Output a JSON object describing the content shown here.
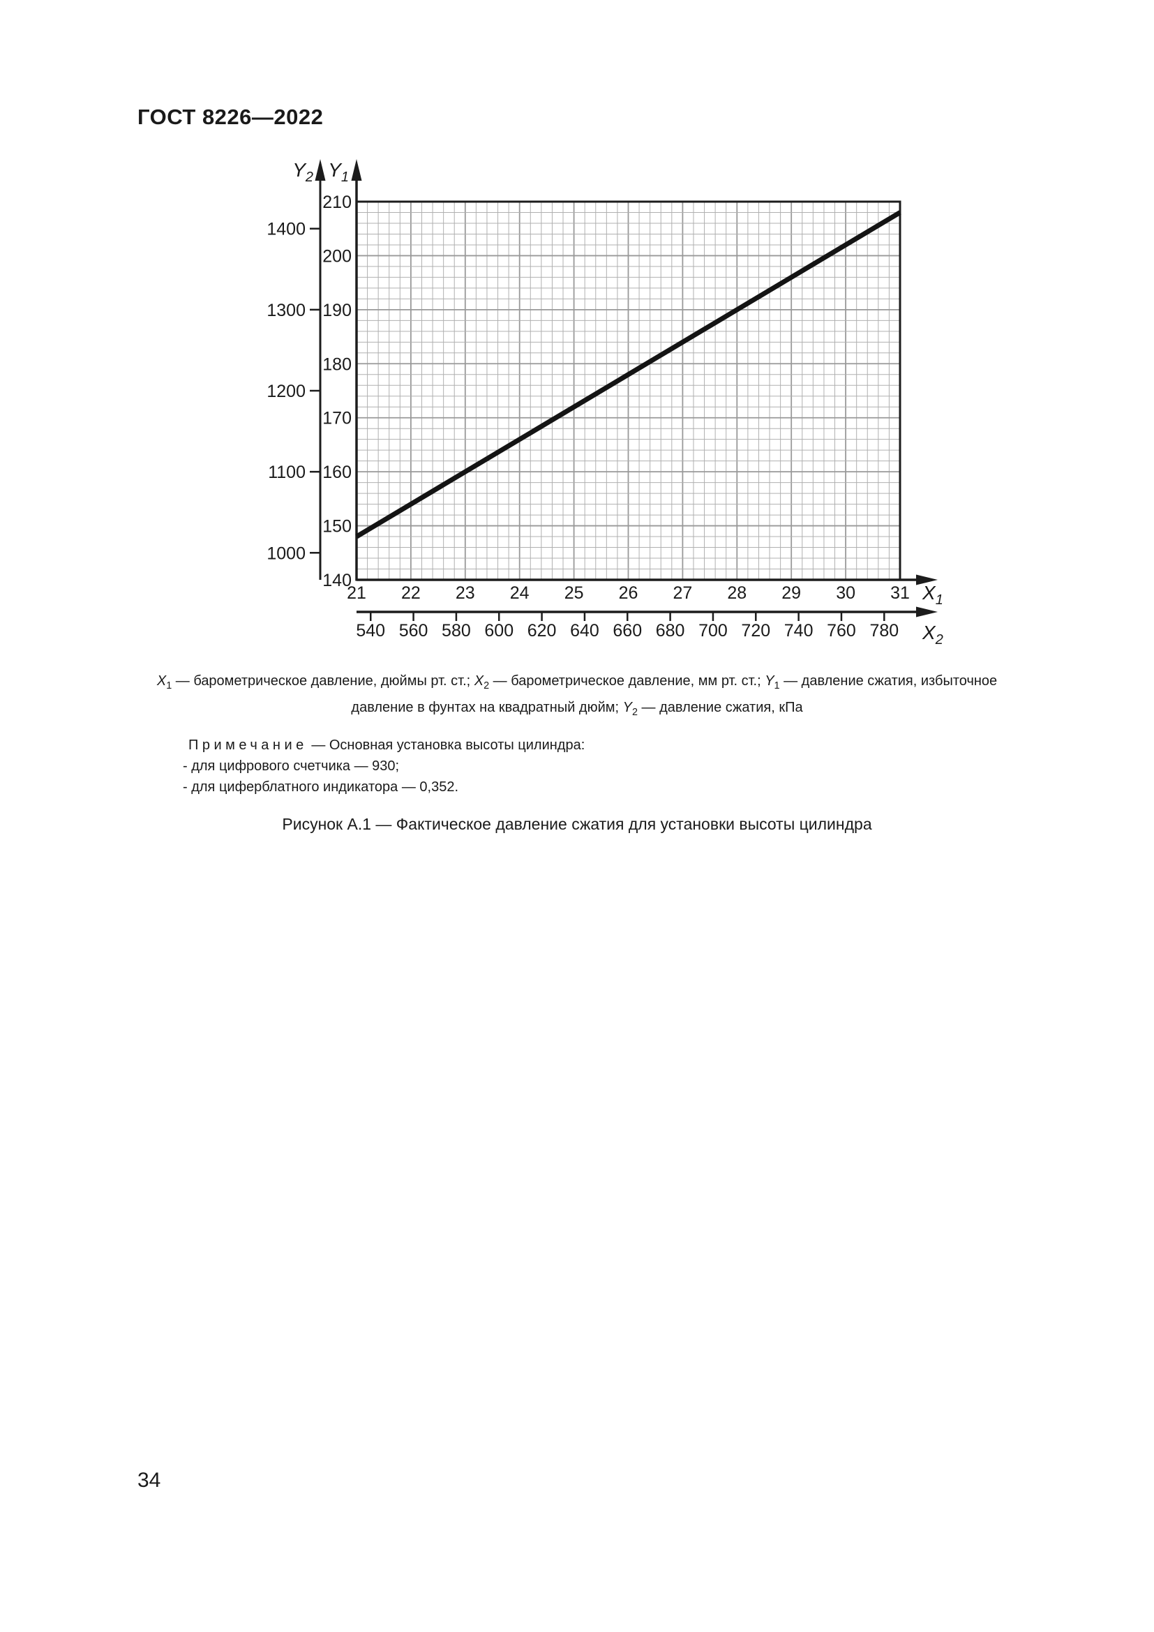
{
  "document": {
    "header": "ГОСТ 8226—2022",
    "page_number": "34",
    "legend_parts": [
      {
        "var": "X",
        "sub": "1",
        "text": " — барометрическое давление, дюймы рт. ст.; "
      },
      {
        "var": "X",
        "sub": "2",
        "text": " — барометрическое давление, мм рт. ст.; "
      },
      {
        "var": "Y",
        "sub": "1",
        "text": " — давление сжатия, избыточное давление в фунтах на квадратный дюйм; "
      },
      {
        "var": "Y",
        "sub": "2",
        "text": " — давление сжатия, кПа"
      }
    ],
    "note": {
      "label": "Примечание",
      "intro": " — Основная установка высоты цилиндра:",
      "items": [
        "- для цифрового счетчика — 930;",
        "- для циферблатного индикатора — 0,352."
      ]
    },
    "figure_caption": "Рисунок А.1 — Фактическое давление сжатия для установки высоты цилиндра"
  },
  "chart_data": {
    "type": "line",
    "title": "",
    "grid": true,
    "axes": {
      "x1": {
        "label": {
          "var": "X",
          "sub": "1"
        },
        "min": 21,
        "max": 31,
        "ticks": [
          21,
          22,
          23,
          24,
          25,
          26,
          27,
          28,
          29,
          30,
          31
        ],
        "minor_step": 0.2,
        "description": "барометрическое давление, дюймы рт. ст."
      },
      "x2": {
        "label": {
          "var": "X",
          "sub": "2"
        },
        "ticks": [
          540,
          560,
          580,
          600,
          620,
          640,
          660,
          680,
          700,
          720,
          740,
          760,
          780
        ],
        "mm_per_inch": 25.4,
        "description": "барометрическое давление, мм рт. ст."
      },
      "y1": {
        "label": {
          "var": "Y",
          "sub": "1"
        },
        "min": 140,
        "max": 210,
        "ticks": [
          210,
          200,
          190,
          180,
          170,
          160,
          150,
          140
        ],
        "minor_step": 2,
        "description": "давление сжатия, избыточное давление в фунтах на квадратный дюйм"
      },
      "y2": {
        "label": {
          "var": "Y",
          "sub": "2"
        },
        "ticks": [
          1400,
          1300,
          1200,
          1100,
          1000
        ],
        "tick_positions_y1": [
          205,
          190,
          175,
          160,
          145
        ],
        "description": "давление сжатия, кПа"
      }
    },
    "series": [
      {
        "name": "фактическое давление сжатия",
        "points": [
          [
            21,
            148
          ],
          [
            31,
            208
          ]
        ]
      }
    ],
    "colors": {
      "line": "#141414",
      "axis": "#1c1c1c",
      "grid_minor": "#b0b0b0",
      "grid_major": "#999999",
      "text": "#1a1a1a"
    }
  }
}
